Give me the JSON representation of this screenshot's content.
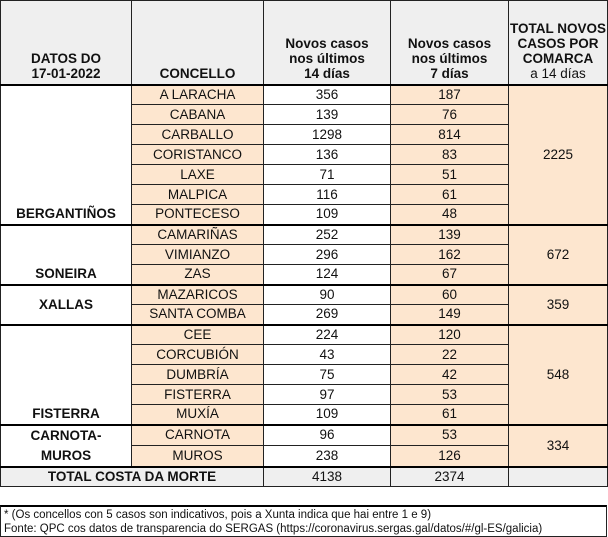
{
  "header": {
    "date_label": "DATOS DO",
    "date": "17-01-2022",
    "concello": "CONCELLO",
    "col14": [
      "Novos casos",
      "nos últimos",
      "14 días"
    ],
    "col7": [
      "Novos casos",
      "nos últimos",
      "7 días"
    ],
    "total": [
      "TOTAL NOVOS",
      "CASOS POR",
      "COMARCA",
      "a 14 días"
    ]
  },
  "comarcas": [
    {
      "name": "BERGANTIÑOS",
      "total": "2225",
      "rows": [
        [
          "A LARACHA",
          "356",
          "187"
        ],
        [
          "CABANA",
          "139",
          "76"
        ],
        [
          "CARBALLO",
          "1298",
          "814"
        ],
        [
          "CORISTANCO",
          "136",
          "83"
        ],
        [
          "LAXE",
          "71",
          "51"
        ],
        [
          "MALPICA",
          "116",
          "61"
        ],
        [
          "PONTECESO",
          "109",
          "48"
        ]
      ]
    },
    {
      "name": "SONEIRA",
      "total": "672",
      "rows": [
        [
          "CAMARIÑAS",
          "252",
          "139"
        ],
        [
          "VIMIANZO",
          "296",
          "162"
        ],
        [
          "ZAS",
          "124",
          "67"
        ]
      ]
    },
    {
      "name": "XALLAS",
      "total": "359",
      "rows": [
        [
          "MAZARICOS",
          "90",
          "60"
        ],
        [
          "SANTA COMBA",
          "269",
          "149"
        ]
      ]
    },
    {
      "name": "FISTERRA",
      "total": "548",
      "rows": [
        [
          "CEE",
          "224",
          "120"
        ],
        [
          "CORCUBIÓN",
          "43",
          "22"
        ],
        [
          "DUMBRÍA",
          "75",
          "42"
        ],
        [
          "FISTERRA",
          "97",
          "53"
        ],
        [
          "MUXÍA",
          "109",
          "61"
        ]
      ]
    },
    {
      "name": "CARNOTA-\nMUROS",
      "total": "334",
      "rows": [
        [
          "CARNOTA",
          "96",
          "53"
        ],
        [
          "MUROS",
          "238",
          "126"
        ]
      ]
    }
  ],
  "total": {
    "label": "TOTAL COSTA DA MORTE",
    "c14": "4138",
    "c7": "2374"
  },
  "footer": [
    "* (Os concellos con 5 casos son indicativos, pois a Xunta indica que hai entre 1 e 9)",
    "Fonte: QPC cos datos de transparencia do SERGAS (https://coronavirus.sergas.gal/datos/#/gl-ES/galicia)"
  ],
  "colors": {
    "peach": "#fde6cf",
    "header": "#efefef"
  }
}
